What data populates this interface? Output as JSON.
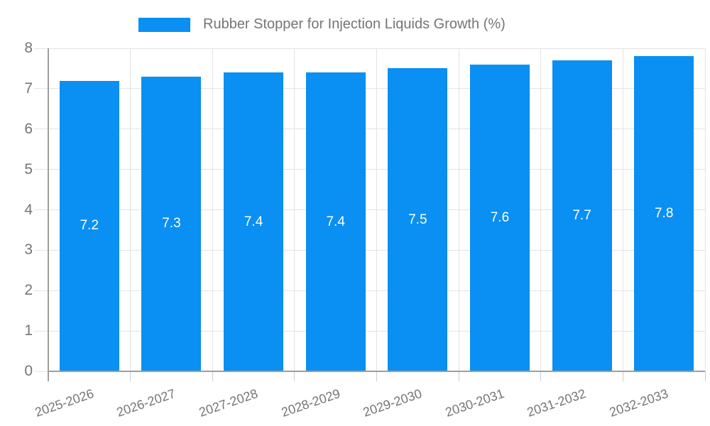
{
  "legend": {
    "position": "top",
    "label": "Rubber Stopper for Injection Liquids Growth (%)"
  },
  "chart_data": {
    "type": "bar",
    "title": "Rubber Stopper for Injection Liquids Growth (%)",
    "categories": [
      "2025-2026",
      "2026-2027",
      "2027-2028",
      "2028-2029",
      "2029-2030",
      "2030-2031",
      "2031-2032",
      "2032-2033"
    ],
    "values": [
      7.2,
      7.3,
      7.4,
      7.4,
      7.5,
      7.6,
      7.7,
      7.8
    ],
    "value_labels": [
      "7.2",
      "7.3",
      "7.4",
      "7.4",
      "7.5",
      "7.6",
      "7.7",
      "7.8"
    ],
    "xlabel": "",
    "ylabel": "",
    "ylim": [
      0,
      8
    ],
    "y_ticks": [
      0,
      1,
      2,
      3,
      4,
      5,
      6,
      7,
      8
    ],
    "grid": true,
    "legend_position": "top",
    "colors": {
      "bar": "#0a8ff2",
      "value_label": "#ffffff",
      "axis_text": "#757575",
      "gridline": "#e3e3e3",
      "axis_line": "#9e9e9e",
      "tick": "#cccccc"
    }
  }
}
